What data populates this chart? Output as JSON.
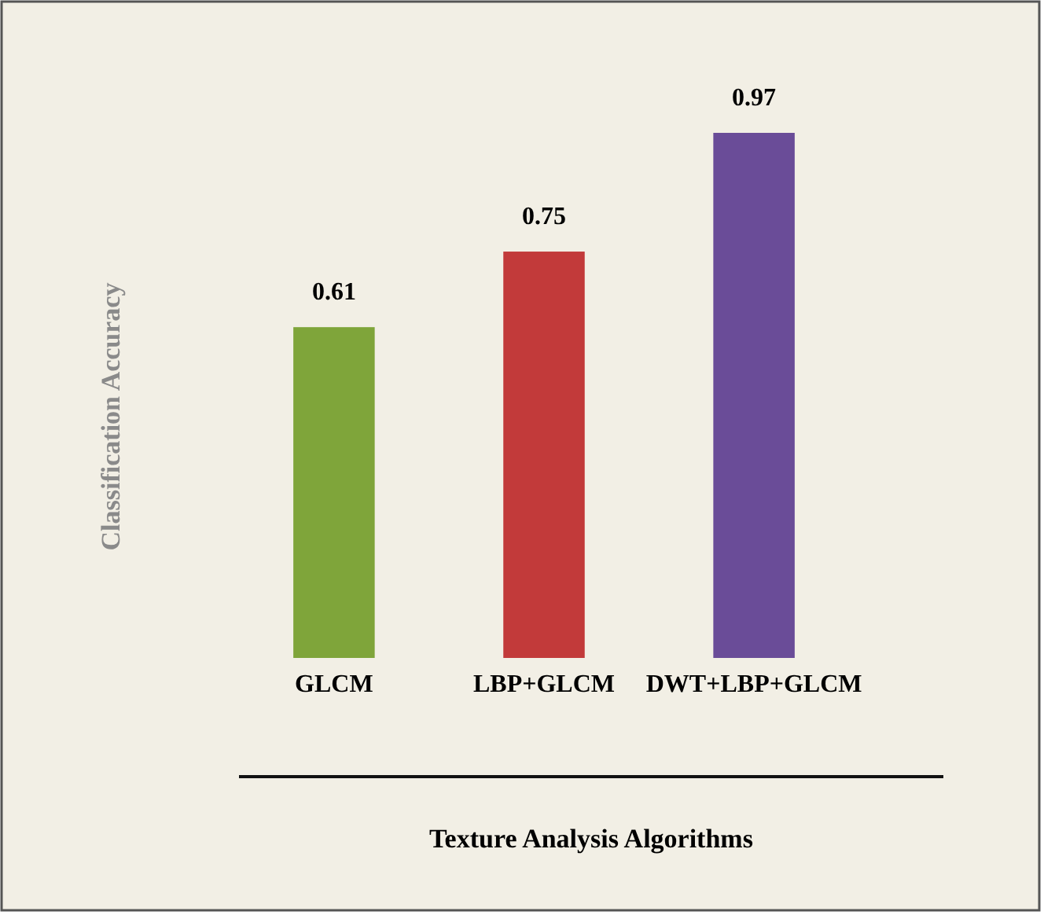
{
  "chart_data": {
    "type": "bar",
    "xlabel": "Texture Analysis Algorithms",
    "ylabel": "Classification Accuracy",
    "categories": [
      "GLCM",
      "LBP+GLCM",
      "DWT+LBP+GLCM"
    ],
    "values": [
      0.61,
      0.75,
      0.97
    ],
    "colors": [
      "#7fa53a",
      "#c23a3a",
      "#6a4c98"
    ],
    "data_labels": true
  }
}
